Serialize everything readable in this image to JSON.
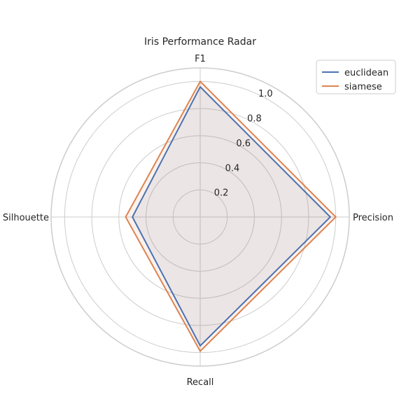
{
  "chart_data": {
    "type": "radar",
    "title": "Iris Performance Radar",
    "axes": [
      "F1",
      "Precision",
      "Recall",
      "Silhouette"
    ],
    "r_ticks": [
      0.2,
      0.4,
      0.6,
      0.8,
      1.0
    ],
    "r_tick_labels": [
      "0.2",
      "0.4",
      "0.6",
      "0.8",
      "1.0"
    ],
    "rlim": [
      0,
      1.1
    ],
    "grid": true,
    "legend_position": "top-right",
    "series": [
      {
        "name": "euclidean",
        "color": "#4c72b0",
        "values": [
          0.96,
          0.96,
          0.95,
          0.5
        ]
      },
      {
        "name": "siamese",
        "color": "#dd8452",
        "values": [
          1.0,
          1.0,
          0.99,
          0.55
        ]
      }
    ]
  }
}
